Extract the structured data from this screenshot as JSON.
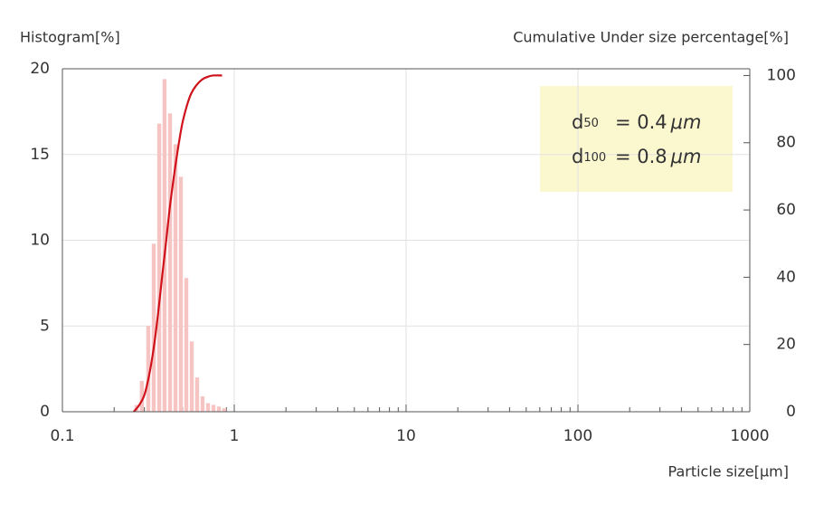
{
  "chart_data": {
    "type": "histogram-cumulative",
    "y_label": "Histogram[%]",
    "y2_label": "Cumulative Under size percentage[%]",
    "x_label": "Particle size[μm]",
    "log_x": true,
    "grid": true,
    "xlim": [
      0.1,
      1000
    ],
    "xticks": [
      0.1,
      1,
      10,
      100,
      1000
    ],
    "ylim": [
      0,
      20
    ],
    "yticks": [
      0,
      5,
      10,
      15,
      20
    ],
    "y2lim": [
      0,
      102
    ],
    "y2ticks": [
      0,
      20,
      40,
      60,
      80,
      100
    ],
    "series": [
      {
        "kind": "bars",
        "color": "#f7c4c4",
        "x": [
          0.27,
          0.29,
          0.316,
          0.34,
          0.366,
          0.393,
          0.423,
          0.455,
          0.489,
          0.526,
          0.566,
          0.608,
          0.654,
          0.704,
          0.757,
          0.814,
          0.875
        ],
        "values": [
          0.4,
          1.8,
          5.0,
          9.8,
          16.8,
          19.4,
          17.4,
          15.6,
          13.7,
          7.8,
          4.1,
          2.0,
          0.9,
          0.5,
          0.4,
          0.3,
          0.2
        ]
      },
      {
        "kind": "line",
        "axis": "y2",
        "color": "#d0121b",
        "x": [
          0.26,
          0.28,
          0.3,
          0.32,
          0.34,
          0.36,
          0.38,
          0.4,
          0.42,
          0.44,
          0.46,
          0.48,
          0.5,
          0.53,
          0.56,
          0.6,
          0.65,
          0.7,
          0.75,
          0.85
        ],
        "values": [
          0,
          2,
          5,
          11,
          19,
          29,
          40,
          50,
          60,
          68,
          75,
          81,
          86,
          91,
          94.5,
          97,
          98.8,
          99.6,
          100,
          100
        ]
      }
    ],
    "annotations": [
      {
        "label": "d",
        "sub": "50",
        "text": "= 0.4",
        "unit": "μm"
      },
      {
        "label": "d",
        "sub": "100",
        "text": "= 0.8",
        "unit": "μm"
      }
    ]
  }
}
